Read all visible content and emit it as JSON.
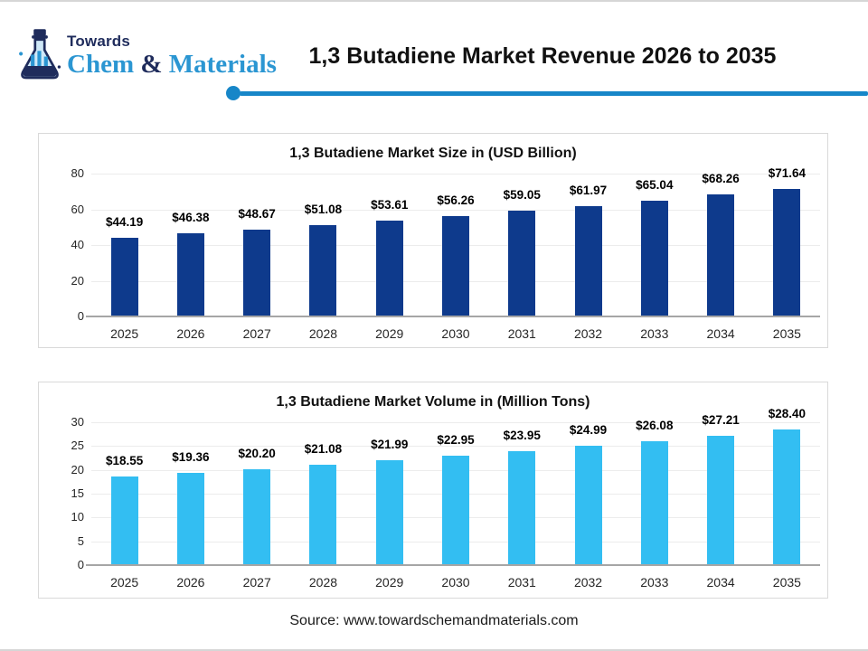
{
  "header": {
    "logo": {
      "top_text": "Towards",
      "brand_chem": "Chem",
      "brand_amp": " & ",
      "brand_materials": "Materials",
      "navy": "#1f2c5c",
      "blue": "#2b96d2"
    },
    "title": "1,3 Butadiene Market Revenue 2026 to 2035",
    "divider_color": "#1786c8"
  },
  "footer": {
    "source": "Source: www.towardschemandmaterials.com"
  },
  "chart_data": [
    {
      "type": "bar",
      "title": "1,3 Butadiene Market Size in (USD Billion)",
      "categories": [
        "2025",
        "2026",
        "2027",
        "2028",
        "2029",
        "2030",
        "2031",
        "2032",
        "2033",
        "2034",
        "2035"
      ],
      "values": [
        44.19,
        46.38,
        48.67,
        51.08,
        53.61,
        56.26,
        59.05,
        61.97,
        65.04,
        68.26,
        71.64
      ],
      "labels": [
        "$44.19",
        "$46.38",
        "$48.67",
        "$51.08",
        "$53.61",
        "$56.26",
        "$59.05",
        "$61.97",
        "$65.04",
        "$68.26",
        "$71.64"
      ],
      "xlabel": "",
      "ylabel": "",
      "ylim": [
        0,
        80
      ],
      "yticks": [
        80,
        60,
        40,
        20,
        0
      ],
      "bar_color": "#0e3a8c",
      "grid": "horizontal",
      "legend": "none"
    },
    {
      "type": "bar",
      "title": "1,3 Butadiene Market Volume in (Million Tons)",
      "categories": [
        "2025",
        "2026",
        "2027",
        "2028",
        "2029",
        "2030",
        "2031",
        "2032",
        "2033",
        "2034",
        "2035"
      ],
      "values": [
        18.55,
        19.36,
        20.2,
        21.08,
        21.99,
        22.95,
        23.95,
        24.99,
        26.08,
        27.21,
        28.4
      ],
      "labels": [
        "$18.55",
        "$19.36",
        "$20.20",
        "$21.08",
        "$21.99",
        "$22.95",
        "$23.95",
        "$24.99",
        "$26.08",
        "$27.21",
        "$28.40"
      ],
      "xlabel": "",
      "ylabel": "",
      "ylim": [
        0,
        30
      ],
      "yticks": [
        30,
        25,
        20,
        15,
        10,
        5,
        0
      ],
      "bar_color": "#33bef2",
      "grid": "horizontal",
      "legend": "none"
    }
  ]
}
